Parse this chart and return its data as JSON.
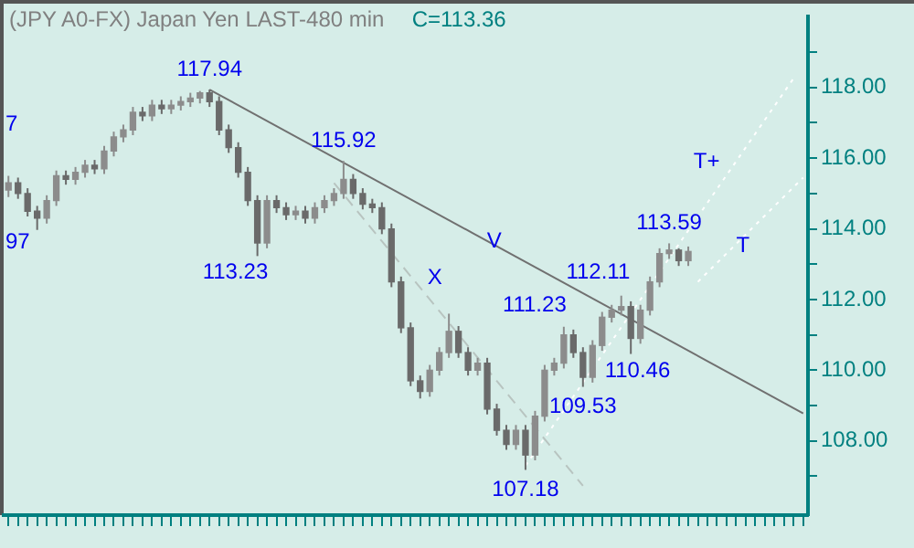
{
  "chart_data": {
    "type": "candlestick",
    "title": "(JPY A0-FX) Japan Yen LAST-480 min",
    "subtitle": "C=113.36",
    "colors": [
      "#8c8c8c",
      "#6a6a6a",
      "#6a6a6a",
      "#6a6a6a",
      "#8c8c8c",
      "#8c8c8c",
      "#6a6a6a",
      "#8c8c8c",
      "#8c8c8c",
      "#6a6a6a",
      "#8c8c8c",
      "#8c8c8c",
      "#8c8c8c",
      "#8c8c8c",
      "#6a6a6a",
      "#8c8c8c",
      "#6a6a6a",
      "#8c8c8c",
      "#8c8c8c",
      "#8c8c8c",
      "#8c8c8c",
      "#6a6a6a",
      "#6a6a6a",
      "#6a6a6a",
      "#6a6a6a",
      "#6a6a6a",
      "#6a6a6a",
      "#8c8c8c",
      "#6a6a6a",
      "#6a6a6a",
      "#8c8c8c",
      "#6a6a6a",
      "#8c8c8c",
      "#8c8c8c",
      "#8c8c8c",
      "#8c8c8c",
      "#6a6a6a",
      "#6a6a6a",
      "#6a6a6a",
      "#6a6a6a",
      "#6a6a6a",
      "#6a6a6a",
      "#6a6a6a",
      "#6a6a6a",
      "#8c8c8c",
      "#8c8c8c",
      "#8c8c8c",
      "#6a6a6a",
      "#6a6a6a",
      "#8c8c8c",
      "#6a6a6a",
      "#6a6a6a",
      "#6a6a6a",
      "#8c8c8c",
      "#6a6a6a",
      "#8c8c8c",
      "#8c8c8c",
      "#8c8c8c",
      "#8c8c8c",
      "#6a6a6a",
      "#6a6a6a",
      "#8c8c8c",
      "#8c8c8c",
      "#8c8c8c",
      "#8c8c8c",
      "#6a6a6a",
      "#8c8c8c",
      "#8c8c8c",
      "#8c8c8c",
      "#8c8c8c",
      "#6a6a6a",
      "#8c8c8c",
      null,
      null,
      null,
      null,
      null,
      null,
      null,
      null,
      null,
      null,
      null,
      null
    ],
    "categories": [
      null,
      null,
      null,
      null,
      null,
      null,
      null,
      null,
      null,
      null,
      null,
      null,
      null,
      null,
      null,
      null,
      null,
      null,
      null,
      null,
      null,
      null,
      null,
      null,
      null,
      null,
      null,
      null,
      null,
      null,
      null,
      null,
      null,
      null,
      null,
      null,
      null,
      null,
      null,
      null,
      null,
      null,
      null,
      null,
      null,
      null,
      null,
      null,
      null,
      null,
      null,
      null,
      null,
      null,
      null,
      null,
      null,
      null,
      null,
      null,
      null,
      null,
      null,
      null,
      null,
      null,
      null,
      null,
      null,
      null,
      null,
      null,
      null,
      null,
      null,
      null,
      null,
      null,
      null,
      null,
      null,
      null,
      null,
      null
    ],
    "ohlc": [
      [
        115.1,
        115.5,
        114.9,
        115.3
      ],
      [
        115.3,
        115.45,
        114.85,
        115.0
      ],
      [
        115.0,
        115.15,
        114.35,
        114.5
      ],
      [
        114.5,
        114.65,
        113.97,
        114.3
      ],
      [
        114.3,
        114.95,
        114.15,
        114.8
      ],
      [
        114.8,
        115.65,
        114.65,
        115.5
      ],
      [
        115.5,
        115.65,
        115.25,
        115.4
      ],
      [
        115.4,
        115.75,
        115.25,
        115.6
      ],
      [
        115.6,
        115.95,
        115.45,
        115.8
      ],
      [
        115.8,
        115.95,
        115.55,
        115.7
      ],
      [
        115.7,
        116.35,
        115.55,
        116.2
      ],
      [
        116.2,
        116.75,
        116.05,
        116.6
      ],
      [
        116.6,
        116.95,
        116.45,
        116.8
      ],
      [
        116.8,
        117.45,
        116.65,
        117.3
      ],
      [
        117.3,
        117.45,
        117.05,
        117.2
      ],
      [
        117.2,
        117.65,
        117.05,
        117.5
      ],
      [
        117.5,
        117.65,
        117.25,
        117.4
      ],
      [
        117.4,
        117.65,
        117.25,
        117.5
      ],
      [
        117.5,
        117.75,
        117.35,
        117.6
      ],
      [
        117.6,
        117.85,
        117.45,
        117.7
      ],
      [
        117.7,
        117.9,
        117.55,
        117.85
      ],
      [
        117.85,
        117.94,
        117.45,
        117.6
      ],
      [
        117.6,
        117.75,
        116.65,
        116.8
      ],
      [
        116.8,
        116.95,
        116.15,
        116.3
      ],
      [
        116.3,
        116.45,
        115.45,
        115.6
      ],
      [
        115.6,
        115.75,
        114.65,
        114.8
      ],
      [
        114.8,
        114.95,
        113.23,
        113.6
      ],
      [
        113.6,
        114.95,
        113.45,
        114.8
      ],
      [
        114.8,
        114.95,
        114.45,
        114.6
      ],
      [
        114.6,
        114.75,
        114.25,
        114.4
      ],
      [
        114.4,
        114.65,
        114.25,
        114.5
      ],
      [
        114.5,
        114.65,
        114.15,
        114.3
      ],
      [
        114.3,
        114.75,
        114.15,
        114.6
      ],
      [
        114.6,
        114.95,
        114.45,
        114.8
      ],
      [
        114.8,
        115.15,
        114.65,
        115.0
      ],
      [
        115.0,
        115.92,
        114.85,
        115.4
      ],
      [
        115.4,
        115.55,
        114.85,
        115.0
      ],
      [
        115.0,
        115.15,
        114.55,
        114.7
      ],
      [
        114.7,
        114.85,
        114.45,
        114.6
      ],
      [
        114.6,
        114.75,
        113.85,
        114.0
      ],
      [
        114.0,
        114.15,
        112.35,
        112.5
      ],
      [
        112.5,
        112.65,
        111.05,
        111.2
      ],
      [
        111.2,
        111.35,
        109.55,
        109.7
      ],
      [
        109.7,
        109.85,
        109.2,
        109.4
      ],
      [
        109.4,
        110.15,
        109.25,
        110.0
      ],
      [
        110.0,
        110.65,
        109.85,
        110.5
      ],
      [
        110.5,
        111.6,
        110.35,
        111.1
      ],
      [
        111.1,
        111.25,
        110.35,
        110.5
      ],
      [
        110.5,
        110.65,
        109.85,
        110.0
      ],
      [
        110.0,
        110.35,
        109.85,
        110.2
      ],
      [
        110.2,
        110.35,
        108.75,
        108.9
      ],
      [
        108.9,
        109.05,
        108.15,
        108.3
      ],
      [
        108.3,
        108.45,
        107.75,
        107.9
      ],
      [
        107.9,
        108.45,
        107.75,
        108.3
      ],
      [
        108.3,
        108.45,
        107.18,
        107.6
      ],
      [
        107.6,
        108.85,
        107.45,
        108.7
      ],
      [
        108.7,
        110.15,
        108.55,
        110.0
      ],
      [
        110.0,
        110.35,
        109.85,
        110.2
      ],
      [
        110.2,
        111.23,
        110.05,
        111.0
      ],
      [
        111.0,
        111.15,
        110.35,
        110.5
      ],
      [
        110.5,
        110.65,
        109.53,
        109.8
      ],
      [
        109.8,
        110.85,
        109.65,
        110.7
      ],
      [
        110.7,
        111.65,
        110.55,
        111.5
      ],
      [
        111.5,
        111.85,
        111.35,
        111.7
      ],
      [
        111.7,
        112.11,
        111.55,
        111.8
      ],
      [
        111.8,
        111.95,
        110.46,
        110.9
      ],
      [
        110.9,
        111.85,
        110.75,
        111.7
      ],
      [
        111.7,
        112.65,
        111.55,
        112.5
      ],
      [
        112.5,
        113.45,
        112.35,
        113.3
      ],
      [
        113.3,
        113.59,
        113.15,
        113.4
      ],
      [
        113.4,
        113.45,
        112.95,
        113.1
      ],
      [
        113.1,
        113.5,
        112.95,
        113.36
      ],
      null,
      null,
      null,
      null,
      null,
      null,
      null,
      null,
      null,
      null,
      null,
      null
    ],
    "series": [
      {
        "type": "line",
        "values": [
          null,
          null,
          null,
          null,
          null,
          null,
          null,
          null,
          null,
          null,
          null,
          null,
          null,
          null,
          null,
          null,
          null,
          null,
          null,
          null,
          null,
          117.94,
          null,
          null,
          null,
          null,
          null,
          null,
          null,
          null,
          null,
          null,
          null,
          null,
          null,
          null,
          null,
          null,
          null,
          null,
          null,
          null,
          null,
          null,
          null,
          null,
          null,
          null,
          null,
          null,
          null,
          null,
          null,
          null,
          null,
          null,
          null,
          null,
          null,
          null,
          null,
          null,
          null,
          null,
          null,
          null,
          null,
          null,
          null,
          null,
          null,
          null,
          null,
          null,
          null,
          null,
          null,
          null,
          null,
          null,
          null,
          null,
          null,
          108.78
        ],
        "color": "#707070",
        "line_style": "solid"
      },
      {
        "type": "line",
        "values": [
          null,
          null,
          null,
          null,
          null,
          null,
          null,
          null,
          null,
          null,
          null,
          null,
          null,
          null,
          null,
          null,
          null,
          null,
          null,
          null,
          null,
          null,
          null,
          null,
          null,
          null,
          null,
          null,
          null,
          null,
          null,
          null,
          null,
          null,
          115.3,
          null,
          null,
          null,
          null,
          null,
          null,
          null,
          null,
          null,
          null,
          null,
          null,
          null,
          null,
          null,
          null,
          null,
          null,
          null,
          null,
          null,
          null,
          null,
          null,
          null,
          106.73,
          null,
          null,
          null,
          null,
          null,
          null,
          null,
          null,
          null,
          null,
          null,
          null,
          null,
          null,
          null,
          null,
          null,
          null,
          null,
          null,
          null,
          null,
          null
        ],
        "color": "#b8c4c0",
        "line_style": "dashed"
      },
      {
        "type": "line",
        "values": [
          null,
          null,
          null,
          null,
          null,
          null,
          null,
          null,
          null,
          null,
          null,
          null,
          null,
          null,
          null,
          null,
          null,
          null,
          null,
          null,
          null,
          null,
          null,
          null,
          null,
          null,
          null,
          null,
          null,
          null,
          null,
          null,
          null,
          null,
          null,
          null,
          null,
          null,
          null,
          null,
          null,
          null,
          null,
          null,
          null,
          null,
          null,
          null,
          null,
          null,
          null,
          null,
          null,
          null,
          107.3,
          null,
          null,
          null,
          null,
          null,
          null,
          null,
          null,
          null,
          null,
          null,
          null,
          null,
          null,
          null,
          null,
          null,
          null,
          null,
          null,
          null,
          null,
          null,
          null,
          null,
          null,
          null,
          118.26,
          null
        ],
        "color": "#ffffff",
        "line_style": "dotted"
      },
      {
        "type": "line",
        "values": [
          null,
          null,
          null,
          null,
          null,
          null,
          null,
          null,
          null,
          null,
          null,
          null,
          null,
          null,
          null,
          null,
          null,
          null,
          null,
          null,
          null,
          null,
          null,
          null,
          null,
          null,
          null,
          null,
          null,
          null,
          null,
          null,
          null,
          null,
          null,
          null,
          null,
          null,
          null,
          null,
          null,
          null,
          null,
          null,
          null,
          null,
          null,
          null,
          null,
          null,
          null,
          null,
          null,
          null,
          null,
          null,
          null,
          null,
          null,
          null,
          null,
          null,
          null,
          null,
          null,
          null,
          null,
          null,
          null,
          null,
          null,
          null,
          112.5,
          null,
          null,
          null,
          null,
          null,
          null,
          null,
          null,
          null,
          null,
          115.45
        ],
        "color": "#ffffff",
        "line_style": "dotted"
      }
    ],
    "ylim": [
      105.9,
      120.0
    ],
    "yticks": [
      {
        "value": 107,
        "label": null
      },
      {
        "value": 108,
        "label": "108.00"
      },
      {
        "value": 109,
        "label": null
      },
      {
        "value": 110,
        "label": "110.00"
      },
      {
        "value": 111,
        "label": null
      },
      {
        "value": 112,
        "label": "112.00"
      },
      {
        "value": 113,
        "label": null
      },
      {
        "value": 114,
        "label": "114.00"
      },
      {
        "value": 115,
        "label": null
      },
      {
        "value": 116,
        "label": "116.00"
      },
      {
        "value": 117,
        "label": null
      },
      {
        "value": 118,
        "label": "118.00"
      },
      {
        "value": 119,
        "label": null
      }
    ],
    "tick_labels": "y",
    "grid": false,
    "legend": false,
    "annotations": [
      {
        "text": "117.94",
        "y": 117.94
      },
      {
        "text": "115.92",
        "y": 115.92
      },
      "113.23",
      "X",
      "V",
      "T+",
      "T",
      {
        "text": "113.59",
        "y": 113.59
      },
      "112.11",
      "111.23",
      {
        "text": "109.53",
        "y": 109.53
      },
      "110.46",
      {
        "text": "107.18",
        "y": 107.18
      },
      "7",
      "97"
    ]
  }
}
